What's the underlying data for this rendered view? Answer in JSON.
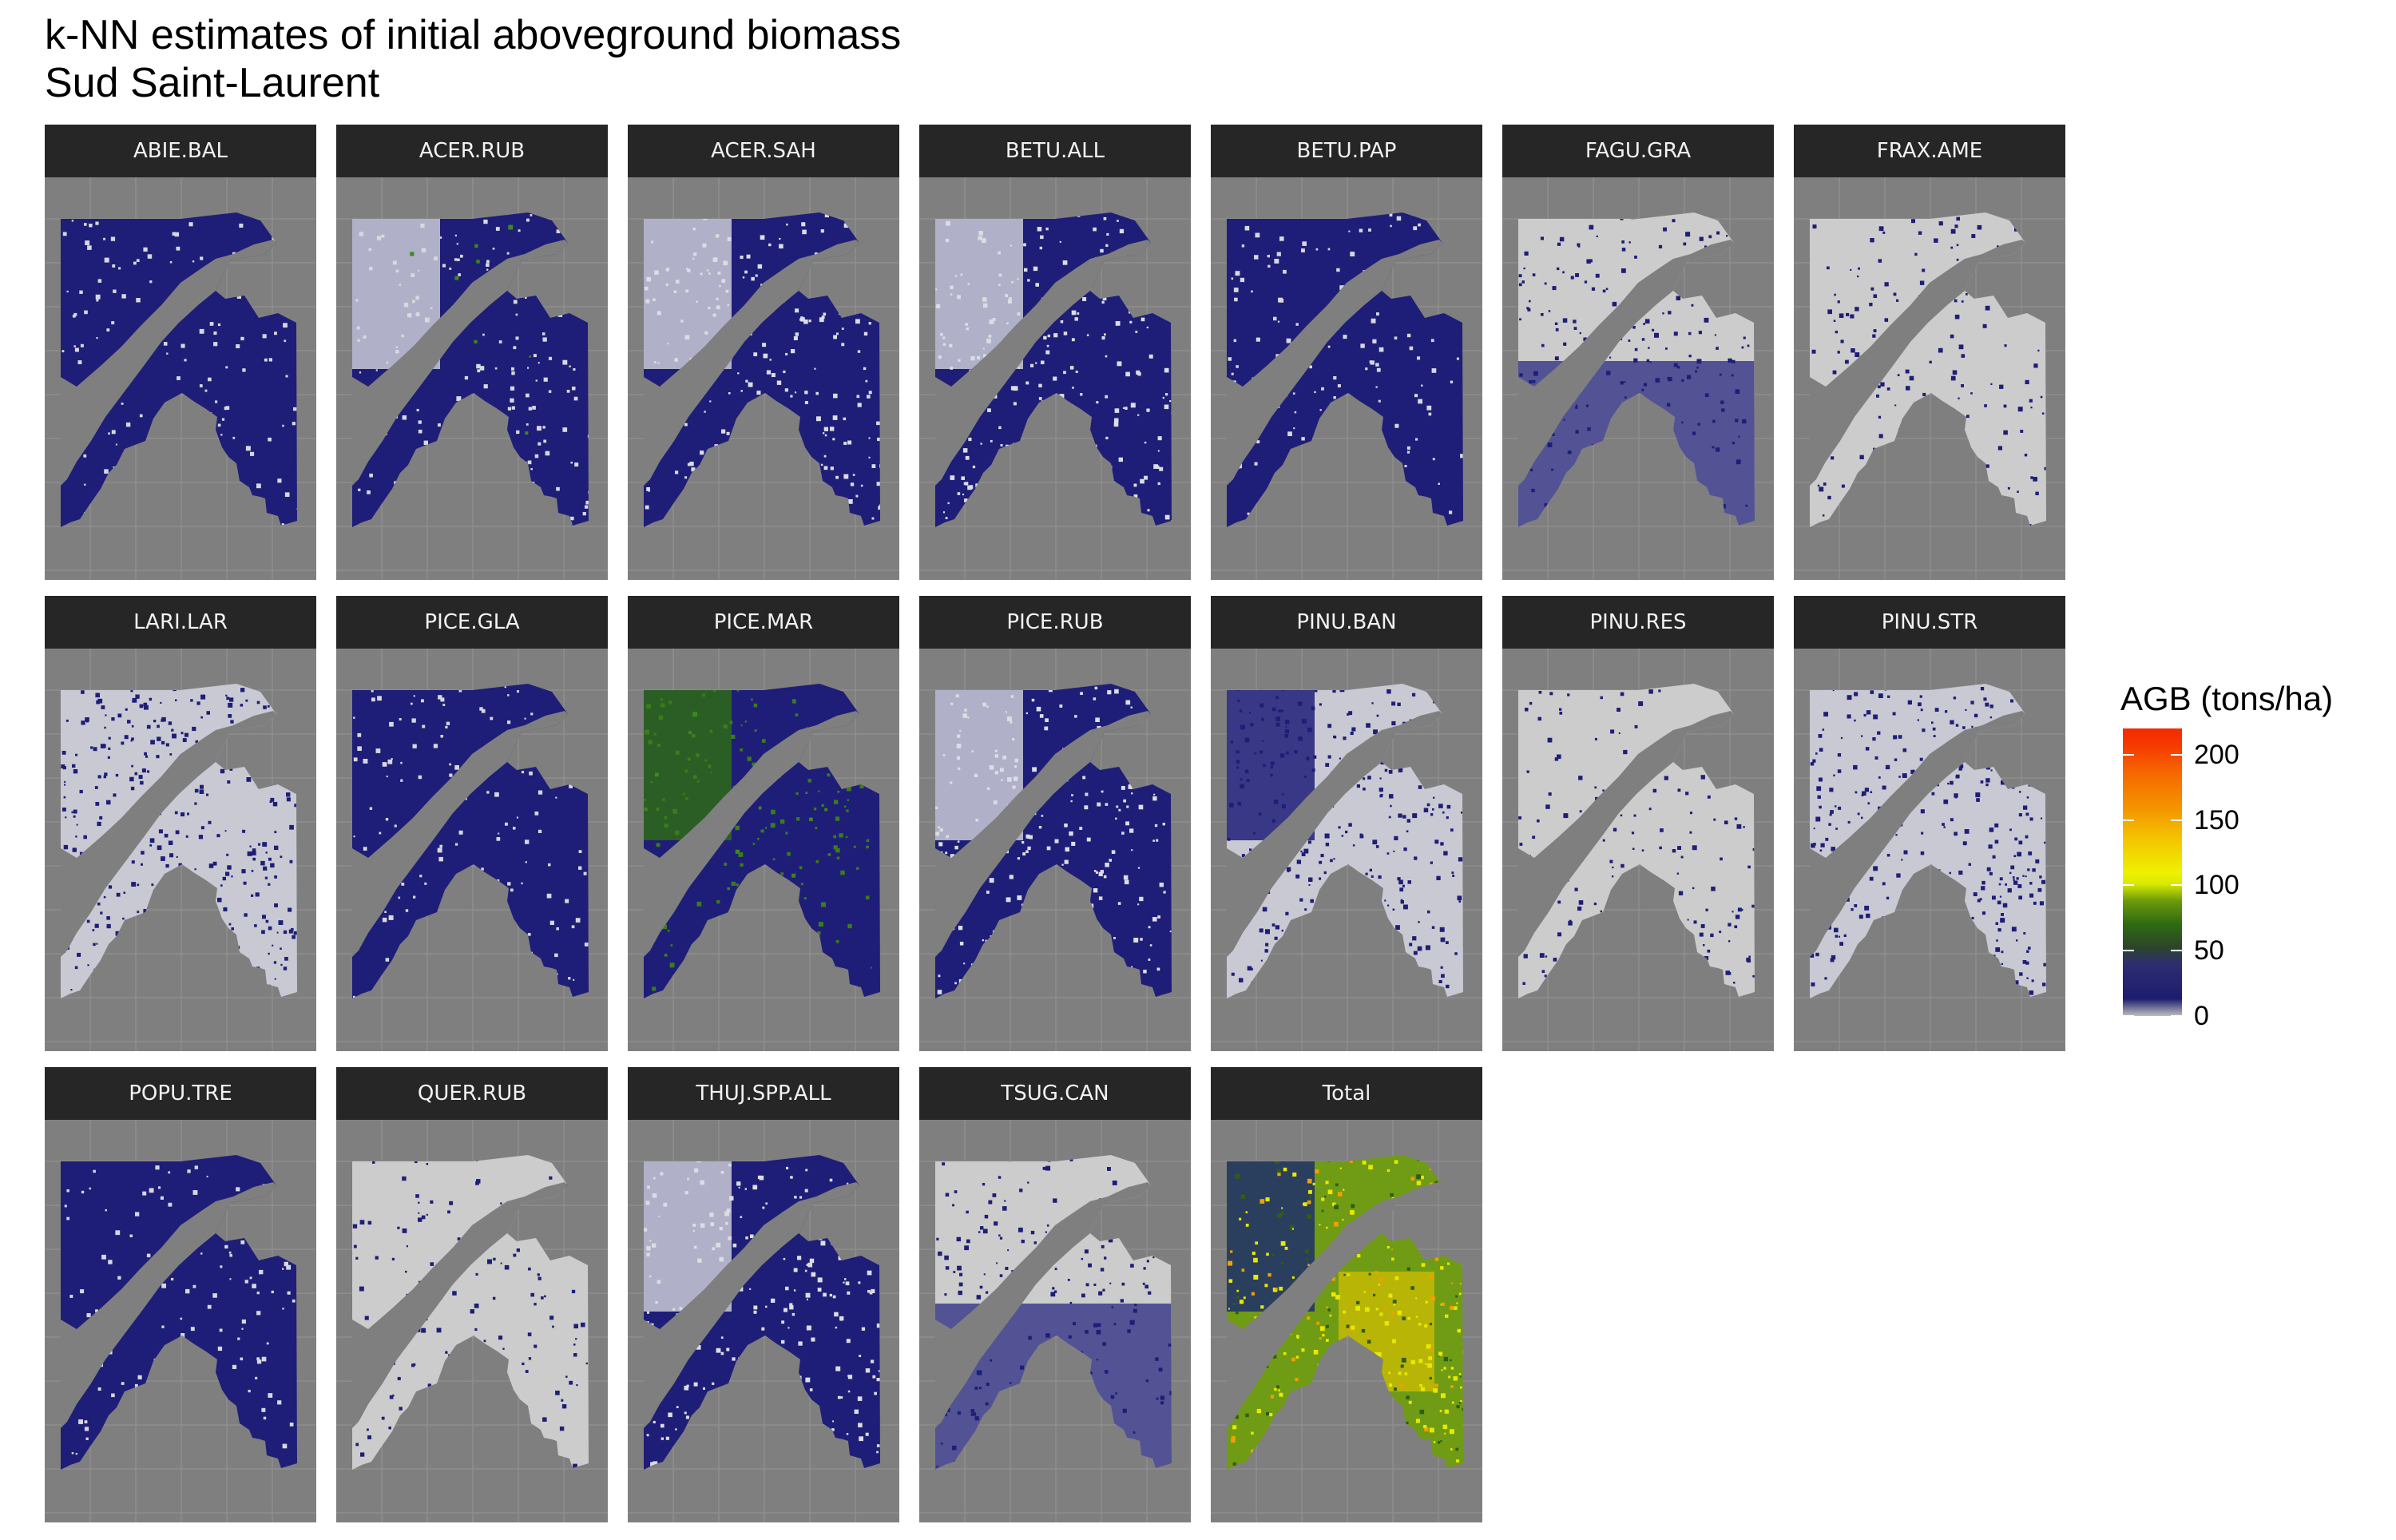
{
  "title_line1": "k-NN estimates of initial aboveground biomass",
  "title_line2": "Sud Saint-Laurent",
  "facets": [
    {
      "label": "ABIE.BAL",
      "style": "navy"
    },
    {
      "label": "ACER.RUB",
      "style": "navy-green-light"
    },
    {
      "label": "ACER.SAH",
      "style": "navy-light"
    },
    {
      "label": "BETU.ALL",
      "style": "navy-light"
    },
    {
      "label": "BETU.PAP",
      "style": "navy"
    },
    {
      "label": "FAGU.GRA",
      "style": "mostly-gray"
    },
    {
      "label": "FRAX.AME",
      "style": "gray"
    },
    {
      "label": "LARI.LAR",
      "style": "sparse"
    },
    {
      "label": "PICE.GLA",
      "style": "navy"
    },
    {
      "label": "PICE.MAR",
      "style": "navy-green"
    },
    {
      "label": "PICE.RUB",
      "style": "navy-light"
    },
    {
      "label": "PINU.BAN",
      "style": "sparse-north"
    },
    {
      "label": "PINU.RES",
      "style": "gray"
    },
    {
      "label": "PINU.STR",
      "style": "sparse"
    },
    {
      "label": "POPU.TRE",
      "style": "navy"
    },
    {
      "label": "QUER.RUB",
      "style": "gray"
    },
    {
      "label": "THUJ.SPP.ALL",
      "style": "navy-light"
    },
    {
      "label": "TSUG.CAN",
      "style": "mostly-gray"
    },
    {
      "label": "Total",
      "style": "total"
    }
  ],
  "legend": {
    "title": "AGB (tons/ha)",
    "max_value": 220,
    "ticks": [
      0,
      50,
      100,
      150,
      200
    ],
    "colors": {
      "zero": "#bfbfbf",
      "low": "#1c1c6e",
      "mid": "#2f6b12",
      "high_mid": "#f0f000",
      "high": "#f42a00"
    }
  },
  "panel_background": "#7f7f7f",
  "strip_background": "#262626"
}
